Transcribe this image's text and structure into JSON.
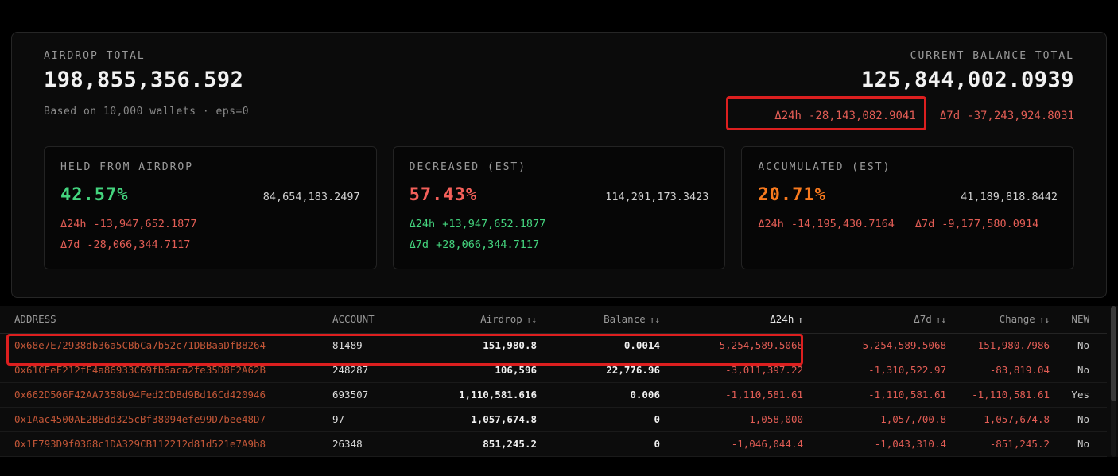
{
  "colors": {
    "positive_green": "#44d47e",
    "negative_red": "#e25d55",
    "percent_green": "#44d47e",
    "percent_red": "#f4605a",
    "percent_orange": "#f97a1e",
    "address_orange": "#c25637",
    "annotation_red": "#dd1f1f",
    "panel_background": "#0b0b0b",
    "page_background": "#000000"
  },
  "summary": {
    "airdrop": {
      "label": "AIRDROP TOTAL",
      "value": "198,855,356.592",
      "subtitle": "Based on 10,000 wallets · eps=0"
    },
    "balance": {
      "label": "CURRENT BALANCE TOTAL",
      "value": "125,844,002.0939",
      "delta_24h_label": "Δ24h",
      "delta_24h_value": "-28,143,082.9041",
      "delta_7d_label": "Δ7d",
      "delta_7d_value": "-37,243,924.8031"
    }
  },
  "cards": [
    {
      "title": "HELD FROM AIRDROP",
      "percent": "42.57%",
      "amount": "84,654,183.2497",
      "delta_24h_label": "Δ24h",
      "delta_24h_value": "-13,947,652.1877",
      "delta_7d_label": "Δ7d",
      "delta_7d_value": "-28,066,344.7117"
    },
    {
      "title": "DECREASED (EST)",
      "percent": "57.43%",
      "amount": "114,201,173.3423",
      "delta_24h_label": "Δ24h",
      "delta_24h_value": "+13,947,652.1877",
      "delta_7d_label": "Δ7d",
      "delta_7d_value": "+28,066,344.7117"
    },
    {
      "title": "ACCUMULATED (EST)",
      "percent": "20.71%",
      "amount": "41,189,818.8442",
      "delta_24h_label": "Δ24h",
      "delta_24h_value": "-14,195,430.7164",
      "delta_7d_label": "Δ7d",
      "delta_7d_value": "-9,177,580.0914"
    }
  ],
  "table": {
    "columns": [
      {
        "label": "ADDRESS",
        "sort": ""
      },
      {
        "label": "ACCOUNT",
        "sort": ""
      },
      {
        "label": "Airdrop",
        "sort": "↑↓"
      },
      {
        "label": "Balance",
        "sort": "↑↓"
      },
      {
        "label": "Δ24h",
        "sort": "↑"
      },
      {
        "label": "Δ7d",
        "sort": "↑↓"
      },
      {
        "label": "Change",
        "sort": "↑↓"
      },
      {
        "label": "NEW",
        "sort": ""
      }
    ],
    "rows": [
      {
        "address": "0x68e7E72938db36a5CBbCa7b52c71DBBaaDfB8264",
        "account": "81489",
        "airdrop": "151,980.8",
        "balance": "0.0014",
        "d24h": "-5,254,589.5068",
        "d7d": "-5,254,589.5068",
        "change": "-151,980.7986",
        "new": "No"
      },
      {
        "address": "0x61CEeF212fF4a86933C69fb6aca2fe35D8F2A62B",
        "account": "248287",
        "airdrop": "106,596",
        "balance": "22,776.96",
        "d24h": "-3,011,397.22",
        "d7d": "-1,310,522.97",
        "change": "-83,819.04",
        "new": "No"
      },
      {
        "address": "0x662D506F42AA7358b94Fed2CDBd9Bd16Cd420946",
        "account": "693507",
        "airdrop": "1,110,581.616",
        "balance": "0.006",
        "d24h": "-1,110,581.61",
        "d7d": "-1,110,581.61",
        "change": "-1,110,581.61",
        "new": "Yes"
      },
      {
        "address": "0x1Aac4500AE2BBdd325cBf38094efe99D7bee48D7",
        "account": "97",
        "airdrop": "1,057,674.8",
        "balance": "0",
        "d24h": "-1,058,000",
        "d7d": "-1,057,700.8",
        "change": "-1,057,674.8",
        "new": "No"
      },
      {
        "address": "0x1F793D9f0368c1DA329CB112212d81d521e7A9b8",
        "account": "26348",
        "airdrop": "851,245.2",
        "balance": "0",
        "d24h": "-1,046,044.4",
        "d7d": "-1,043,310.4",
        "change": "-851,245.2",
        "new": "No"
      }
    ]
  }
}
